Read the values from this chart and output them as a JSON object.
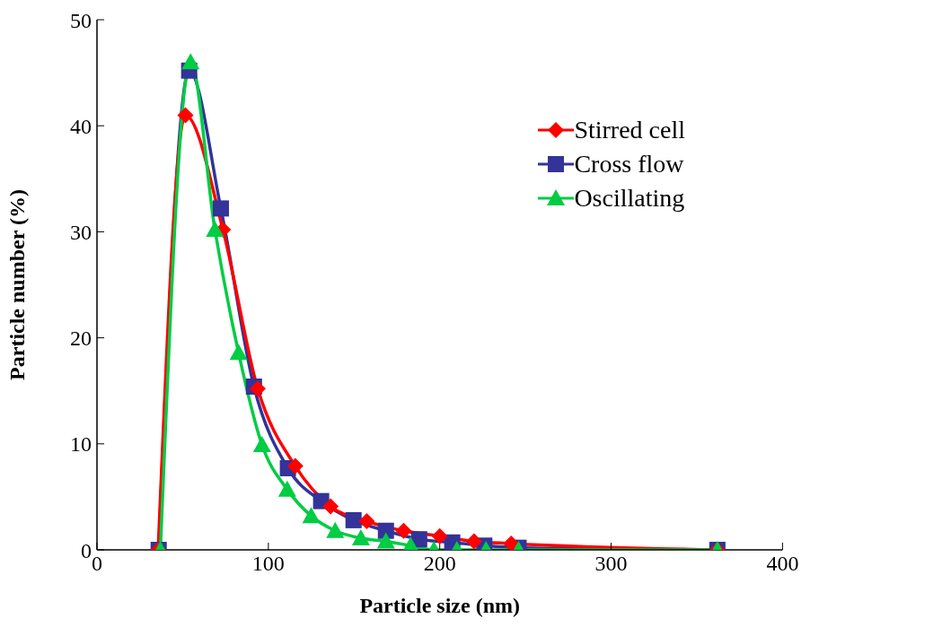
{
  "chart_data": {
    "type": "line",
    "xlabel": "Particle size (nm)",
    "ylabel": "Particle number (%)",
    "xlim": [
      0,
      400
    ],
    "xticks": [
      0,
      100,
      200,
      300,
      400
    ],
    "ylim": [
      0,
      50
    ],
    "yticks": [
      0,
      10,
      20,
      30,
      40,
      50
    ],
    "grid": false,
    "legend": "top right",
    "line_style": "solid",
    "series": [
      {
        "name": "Stirred cell",
        "color": "#ff0000",
        "marker": "diamond",
        "x": [
          35.7,
          51.6,
          73.5,
          93.8,
          115.7,
          136.3,
          157.4,
          178.9,
          200,
          220,
          241.7,
          362
        ],
        "values": [
          0,
          41.0,
          30.2,
          15.2,
          7.9,
          4.1,
          2.7,
          1.8,
          1.3,
          0.8,
          0.6,
          0
        ]
      },
      {
        "name": "Cross flow",
        "color": "#333399",
        "marker": "square",
        "x": [
          36,
          53.8,
          72.3,
          91.6,
          111.4,
          130.8,
          149.7,
          168.6,
          188,
          207.3,
          226,
          246,
          362
        ],
        "values": [
          0,
          45.2,
          32.2,
          15.4,
          7.7,
          4.6,
          2.8,
          1.8,
          1.0,
          0.7,
          0.4,
          0.2,
          0
        ]
      },
      {
        "name": "Oscillating",
        "color": "#00cc44",
        "marker": "triangle",
        "x": [
          37,
          54.6,
          68.8,
          82.6,
          96.3,
          111,
          125,
          139,
          154,
          168.6,
          183,
          196.6,
          210,
          227,
          246,
          362
        ],
        "values": [
          0,
          46,
          30.2,
          18.6,
          9.9,
          5.7,
          3.2,
          1.8,
          1.1,
          0.8,
          0.4,
          0,
          0,
          0,
          0,
          0
        ]
      }
    ]
  }
}
